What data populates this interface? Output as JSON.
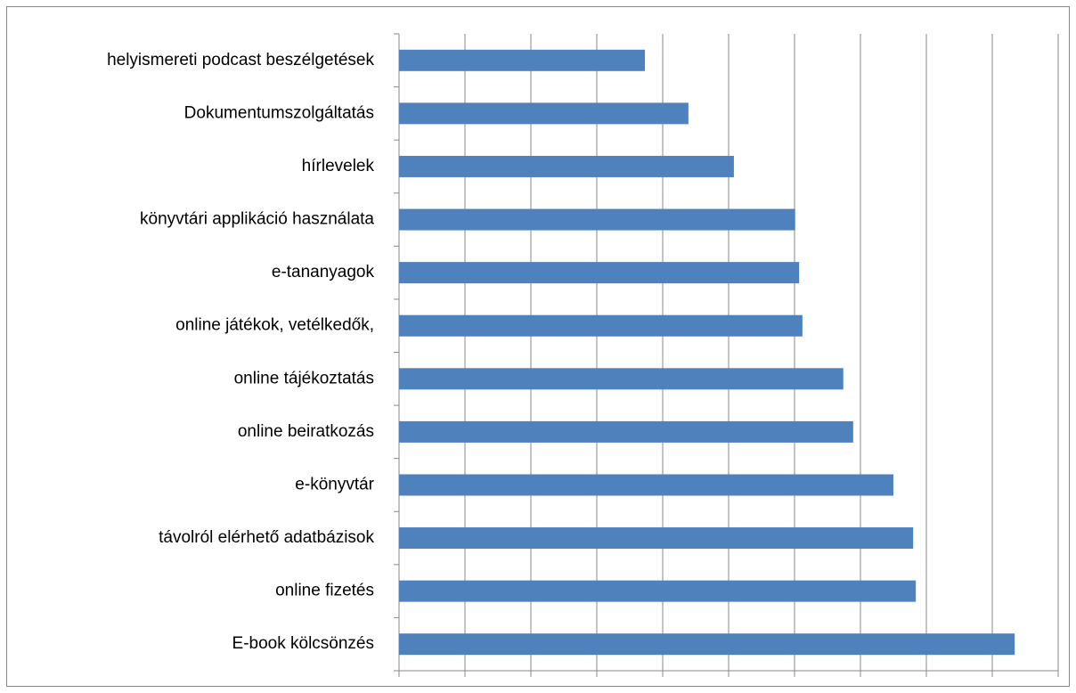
{
  "chart_data": {
    "type": "bar",
    "orientation": "horizontal",
    "categories": [
      "helyismereti podcast beszélgetések",
      "Dokumentumszolgáltatás",
      "hírlevelek",
      "könyvtári applikáció használata",
      "e-tananyagok",
      "online játékok, vetélkedők,",
      "online tájékoztatás",
      "online beiratkozás",
      "e-könyvtár",
      "távolról elérhető adatbázisok",
      "online fizetés",
      "E-book kölcsönzés"
    ],
    "values": [
      3.73,
      4.39,
      5.08,
      6.01,
      6.07,
      6.12,
      6.74,
      6.89,
      7.5,
      7.8,
      7.84,
      9.34
    ],
    "color": "#4f81bd",
    "xlim": [
      0,
      10
    ],
    "xticks": [
      0,
      1,
      2,
      3,
      4,
      5,
      6,
      7,
      8,
      9,
      10
    ],
    "grid": true
  }
}
